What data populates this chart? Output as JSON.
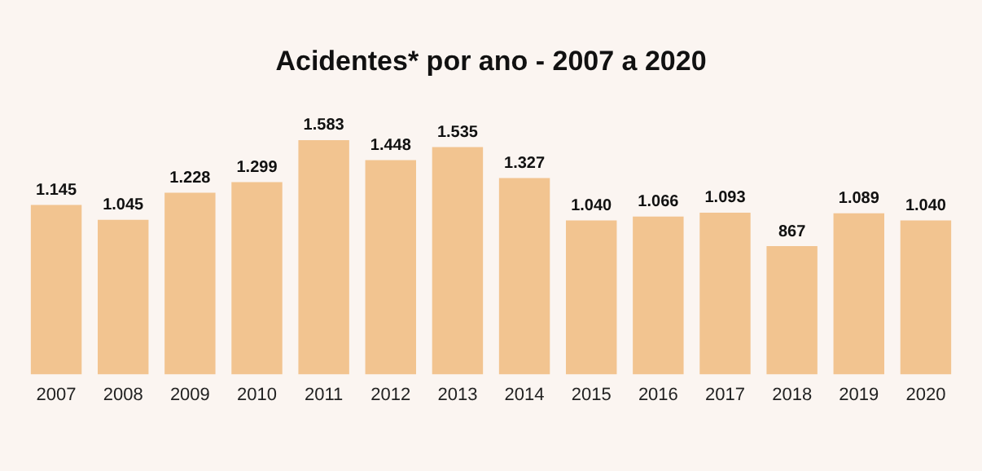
{
  "chart_data": {
    "type": "bar",
    "title": "Acidentes* por ano - 2007 a 2020",
    "categories": [
      "2007",
      "2008",
      "2009",
      "2010",
      "2011",
      "2012",
      "2013",
      "2014",
      "2015",
      "2016",
      "2017",
      "2018",
      "2019",
      "2020"
    ],
    "values": [
      1145,
      1045,
      1228,
      1299,
      1583,
      1448,
      1535,
      1327,
      1040,
      1066,
      1093,
      867,
      1089,
      1040
    ],
    "value_labels": [
      "1.145",
      "1.045",
      "1.228",
      "1.299",
      "1.583",
      "1.448",
      "1.535",
      "1.327",
      "1.040",
      "1.066",
      "1.093",
      "867",
      "1.089",
      "1.040"
    ],
    "color": "#f2c490",
    "grid": false,
    "legend": false
  }
}
